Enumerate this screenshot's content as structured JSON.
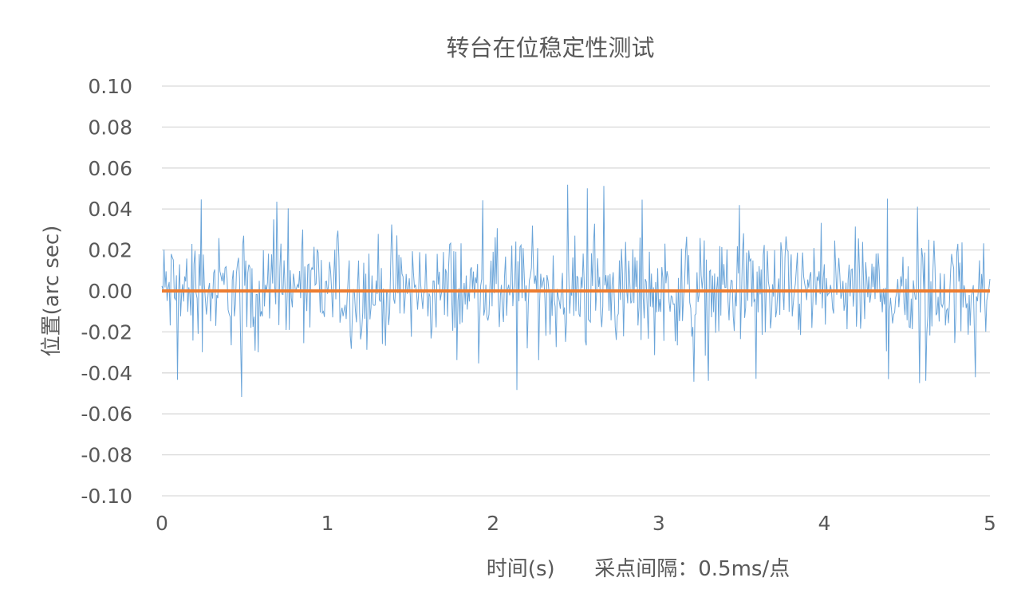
{
  "chart_data": {
    "type": "line",
    "title": "转台在位稳定性测试",
    "xlabel": "时间(s)      采点间隔：0.5ms/点",
    "ylabel": "位置(arc sec)",
    "xlim": [
      0,
      5
    ],
    "ylim": [
      -0.1,
      0.1
    ],
    "xticks": [
      "0",
      "1",
      "2",
      "3",
      "4",
      "5"
    ],
    "yticks": [
      "0.10",
      "0.08",
      "0.06",
      "0.04",
      "0.02",
      "0.00",
      "-0.02",
      "-0.04",
      "-0.06",
      "-0.08",
      "-0.10"
    ],
    "grid": true,
    "legend": false,
    "sample_interval_s": 0.0005,
    "series": [
      {
        "color": "#5B9BD5",
        "kind": "measured_noise",
        "typical_range": [
          -0.04,
          0.04
        ],
        "observed_min": -0.056,
        "observed_max": 0.058
      },
      {
        "color": "#ED7D31",
        "kind": "reference",
        "x": [
          0,
          5
        ],
        "values": [
          0,
          0
        ]
      }
    ]
  }
}
